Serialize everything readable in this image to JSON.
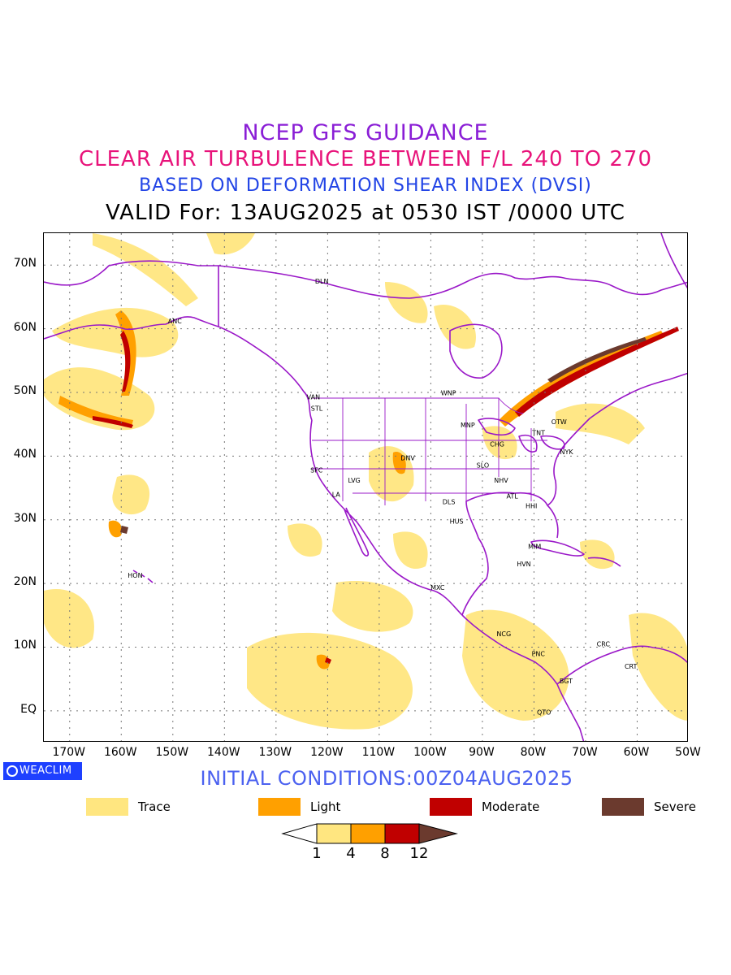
{
  "titles": {
    "line1": "NCEP GFS GUIDANCE",
    "line2": "CLEAR AIR TURBULENCE BETWEEN F/L 240 TO 270",
    "line3": "BASED ON DEFORMATION SHEAR INDEX (DVSI)",
    "line4": "VALID For: 13AUG2025 at 0530 IST /0000 UTC"
  },
  "map": {
    "lon_range": [
      -175,
      -50
    ],
    "lat_range": [
      -5,
      75
    ],
    "lat_labels": [
      "EQ",
      "10N",
      "20N",
      "30N",
      "40N",
      "50N",
      "60N",
      "70N"
    ],
    "lon_labels": [
      "170W",
      "160W",
      "150W",
      "140W",
      "130W",
      "120W",
      "110W",
      "100W",
      "90W",
      "80W",
      "70W",
      "60W",
      "50W"
    ],
    "grid": "dotted",
    "coastline_color": "#9a18c8",
    "stations": [
      {
        "code": "ANC",
        "lon": -150,
        "lat": 61.2
      },
      {
        "code": "DLN",
        "lon": -121.5,
        "lat": 67.5
      },
      {
        "code": "VAN",
        "lon": -123.1,
        "lat": 49.3
      },
      {
        "code": "STL",
        "lon": -122.3,
        "lat": 47.5
      },
      {
        "code": "WNP",
        "lon": -97.1,
        "lat": 49.9
      },
      {
        "code": "MNP",
        "lon": -93.3,
        "lat": 44.9
      },
      {
        "code": "TNT",
        "lon": -79.4,
        "lat": 43.7
      },
      {
        "code": "OTW",
        "lon": -75.7,
        "lat": 45.4
      },
      {
        "code": "NYK",
        "lon": -74.0,
        "lat": 40.7
      },
      {
        "code": "CHG",
        "lon": -87.6,
        "lat": 41.9
      },
      {
        "code": "DNV",
        "lon": -104.9,
        "lat": 39.7
      },
      {
        "code": "SLO",
        "lon": -90.2,
        "lat": 38.6
      },
      {
        "code": "SFC",
        "lon": -122.4,
        "lat": 37.8
      },
      {
        "code": "LVG",
        "lon": -115.1,
        "lat": 36.2
      },
      {
        "code": "LA",
        "lon": -118.2,
        "lat": 34.0
      },
      {
        "code": "NHV",
        "lon": -86.8,
        "lat": 36.2
      },
      {
        "code": "ATL",
        "lon": -84.4,
        "lat": 33.7
      },
      {
        "code": "DLS",
        "lon": -96.8,
        "lat": 32.8
      },
      {
        "code": "HHI",
        "lon": -80.7,
        "lat": 32.2
      },
      {
        "code": "HUS",
        "lon": -95.4,
        "lat": 29.8
      },
      {
        "code": "MIM",
        "lon": -80.2,
        "lat": 25.8
      },
      {
        "code": "HVN",
        "lon": -82.4,
        "lat": 23.1
      },
      {
        "code": "MXC",
        "lon": -99.1,
        "lat": 19.4
      },
      {
        "code": "HON",
        "lon": -157.8,
        "lat": 21.3
      },
      {
        "code": "NCG",
        "lon": -86.3,
        "lat": 12.1
      },
      {
        "code": "CRC",
        "lon": -66.9,
        "lat": 10.5
      },
      {
        "code": "PNC",
        "lon": -79.5,
        "lat": 9.0
      },
      {
        "code": "CRT",
        "lon": -61.5,
        "lat": 7.0
      },
      {
        "code": "BGT",
        "lon": -74.1,
        "lat": 4.7
      },
      {
        "code": "QTO",
        "lon": -78.5,
        "lat": -0.2
      }
    ]
  },
  "badge": {
    "text": "WEACLIM",
    "icon": "globe-icon"
  },
  "initial_conditions": "INITIAL CONDITIONS:00Z04AUG2025",
  "legend": [
    {
      "label": "Trace",
      "color": "#ffe680"
    },
    {
      "label": "Light",
      "color": "#ffa000"
    },
    {
      "label": "Moderate",
      "color": "#c00000"
    },
    {
      "label": "Severe",
      "color": "#6b3a2e"
    }
  ],
  "colorbar": {
    "ticks": [
      "1",
      "4",
      "8",
      "12"
    ],
    "colors": [
      "#ffffff",
      "#ffe680",
      "#ffa000",
      "#c00000",
      "#6b3a2e"
    ]
  }
}
